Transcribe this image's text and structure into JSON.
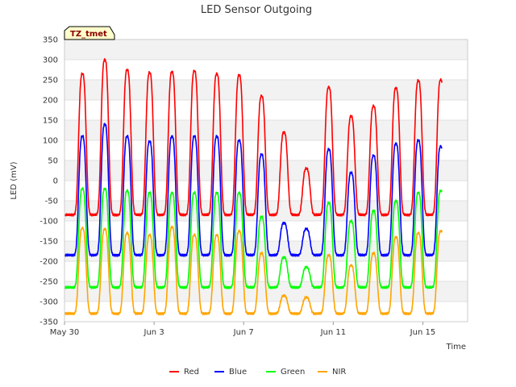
{
  "chart_data": {
    "type": "line",
    "title": "LED Sensor Outgoing",
    "xlabel": "Time",
    "ylabel": "LED (mV)",
    "site_label": "TZ_tmet",
    "ylim": [
      -350,
      350
    ],
    "yticks": [
      -350,
      -300,
      -250,
      -200,
      -150,
      -100,
      -50,
      0,
      50,
      100,
      150,
      200,
      250,
      300,
      350
    ],
    "xlim": [
      0,
      18
    ],
    "xticks": [
      {
        "day": 0,
        "label": "May 30"
      },
      {
        "day": 4,
        "label": "Jun 3"
      },
      {
        "day": 8,
        "label": "Jun 7"
      },
      {
        "day": 12,
        "label": "Jun 11"
      },
      {
        "day": 16,
        "label": "Jun 15"
      }
    ],
    "grid": true,
    "legend": "bottom",
    "day_peaks": [
      0.8,
      1.8,
      2.8,
      3.8,
      4.8,
      5.8,
      6.8,
      7.8,
      8.8,
      9.8,
      10.8,
      11.8,
      12.8,
      13.8,
      14.8,
      15.8,
      16.8
    ],
    "series": [
      {
        "name": "Red",
        "color": "#ff0000",
        "baseline": -85,
        "peaks": [
          265,
          300,
          275,
          268,
          270,
          272,
          265,
          262,
          210,
          120,
          30,
          232,
          160,
          185,
          230,
          248,
          250
        ]
      },
      {
        "name": "Blue",
        "color": "#0000ff",
        "baseline": -185,
        "peaks": [
          110,
          140,
          110,
          97,
          110,
          110,
          110,
          100,
          65,
          -105,
          -120,
          78,
          20,
          62,
          92,
          100,
          85
        ]
      },
      {
        "name": "Green",
        "color": "#00ff00",
        "baseline": -265,
        "peaks": [
          -20,
          -20,
          -25,
          -30,
          -30,
          -30,
          -30,
          -30,
          -90,
          -190,
          -215,
          -55,
          -100,
          -75,
          -50,
          -30,
          -25
        ]
      },
      {
        "name": "NIR",
        "color": "#ffa500",
        "baseline": -330,
        "peaks": [
          -118,
          -120,
          -130,
          -135,
          -115,
          -135,
          -135,
          -125,
          -180,
          -285,
          -290,
          -185,
          -210,
          -180,
          -140,
          -130,
          -125
        ]
      }
    ]
  }
}
